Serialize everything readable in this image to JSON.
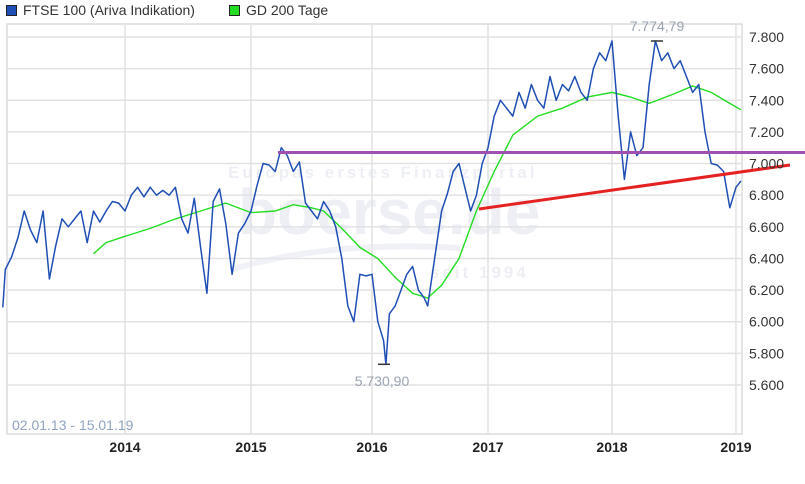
{
  "legend": {
    "items": [
      {
        "label": "FTSE 100 (Ariva Indikation)",
        "color": "#1f4fb5"
      },
      {
        "label": "GD 200 Tage",
        "color": "#22dd22"
      }
    ]
  },
  "watermark": {
    "line1": "Europas erstes Finanzportal",
    "brand": "boerse.de",
    "line2": "seit 1994"
  },
  "annotations": {
    "high_label": "7.774,79",
    "low_label": "5.730,90",
    "date_range": "02.01.13 - 15.01.19"
  },
  "chart_data": {
    "type": "line",
    "title": "",
    "xlabel": "",
    "ylabel": "",
    "date_range": "02.01.13 - 15.01.19",
    "x_tick_labels": [
      "2014",
      "2015",
      "2016",
      "2017",
      "2018",
      "2019"
    ],
    "y_tick_labels": [
      "7.800",
      "7.600",
      "7.400",
      "7.200",
      "7.000",
      "6.800",
      "6.600",
      "6.400",
      "6.200",
      "6.000",
      "5.800",
      "5.600"
    ],
    "ylim": [
      5480,
      7880
    ],
    "xlim": [
      2013.0,
      2019.05
    ],
    "grid": true,
    "legend_position": "top-left",
    "series": [
      {
        "name": "FTSE 100 (Ariva Indikation)",
        "color": "#1f4fb5",
        "x": [
          2013.0,
          2013.05,
          2013.1,
          2013.15,
          2013.2,
          2013.25,
          2013.3,
          2013.35,
          2013.4,
          2013.45,
          2013.5,
          2013.55,
          2013.6,
          2013.65,
          2013.7,
          2013.75,
          2013.8,
          2013.85,
          2013.9,
          2013.95,
          2014.0,
          2014.05,
          2014.1,
          2014.15,
          2014.2,
          2014.25,
          2014.3,
          2014.35,
          2014.4,
          2014.45,
          2014.5,
          2014.55,
          2014.6,
          2014.65,
          2014.7,
          2014.75,
          2014.8,
          2014.85,
          2014.9,
          2014.95,
          2015.0,
          2015.05,
          2015.1,
          2015.15,
          2015.2,
          2015.25,
          2015.3,
          2015.35,
          2015.4,
          2015.45,
          2015.5,
          2015.55,
          2015.6,
          2015.65,
          2015.7,
          2015.75,
          2015.8,
          2015.85,
          2015.9,
          2015.95,
          2016.0,
          2016.05,
          2016.1,
          2016.12,
          2016.15,
          2016.2,
          2016.25,
          2016.3,
          2016.35,
          2016.4,
          2016.45,
          2016.48,
          2016.5,
          2016.55,
          2016.6,
          2016.65,
          2016.7,
          2016.75,
          2016.8,
          2016.85,
          2016.9,
          2016.95,
          2017.0,
          2017.05,
          2017.1,
          2017.15,
          2017.2,
          2017.25,
          2017.3,
          2017.35,
          2017.4,
          2017.45,
          2017.5,
          2017.55,
          2017.6,
          2017.65,
          2017.7,
          2017.75,
          2017.8,
          2017.85,
          2017.9,
          2017.95,
          2018.0,
          2018.05,
          2018.1,
          2018.15,
          2018.2,
          2018.25,
          2018.3,
          2018.35,
          2018.4,
          2018.45,
          2018.5,
          2018.55,
          2018.6,
          2018.65,
          2018.7,
          2018.75,
          2018.8,
          2018.85,
          2018.9,
          2018.95,
          2019.0,
          2019.04
        ],
        "values": [
          6090,
          6330,
          6410,
          6530,
          6700,
          6580,
          6500,
          6700,
          6270,
          6480,
          6650,
          6600,
          6650,
          6700,
          6500,
          6700,
          6630,
          6700,
          6760,
          6750,
          6700,
          6800,
          6850,
          6790,
          6850,
          6800,
          6830,
          6800,
          6850,
          6650,
          6560,
          6780,
          6470,
          6180,
          6760,
          6840,
          6620,
          6300,
          6560,
          6620,
          6700,
          6860,
          7000,
          6990,
          6950,
          7100,
          7050,
          6950,
          7010,
          6750,
          6700,
          6650,
          6760,
          6700,
          6600,
          6400,
          6100,
          6000,
          6300,
          6290,
          6300,
          6000,
          5880,
          5730,
          6050,
          6100,
          6200,
          6300,
          6350,
          6200,
          6150,
          6100,
          6200,
          6450,
          6700,
          6810,
          6950,
          7000,
          6850,
          6700,
          6800,
          7000,
          7100,
          7300,
          7400,
          7350,
          7300,
          7450,
          7350,
          7500,
          7400,
          7350,
          7550,
          7400,
          7500,
          7460,
          7550,
          7450,
          7400,
          7600,
          7700,
          7650,
          7775,
          7300,
          6900,
          7200,
          7050,
          7100,
          7500,
          7775,
          7650,
          7700,
          7600,
          7650,
          7550,
          7450,
          7500,
          7200,
          7000,
          6990,
          6950,
          6720,
          6850,
          6890
        ],
        "annotations": {
          "high": 7774.79,
          "low": 5730.9
        }
      },
      {
        "name": "GD 200 Tage",
        "color": "#22dd22",
        "x": [
          2013.75,
          2013.85,
          2014.0,
          2014.2,
          2014.4,
          2014.6,
          2014.8,
          2015.0,
          2015.2,
          2015.35,
          2015.5,
          2015.6,
          2015.75,
          2015.9,
          2016.05,
          2016.2,
          2016.35,
          2016.48,
          2016.6,
          2016.75,
          2016.9,
          2017.05,
          2017.2,
          2017.4,
          2017.6,
          2017.8,
          2018.0,
          2018.15,
          2018.3,
          2018.5,
          2018.65,
          2018.8,
          2018.95,
          2019.04
        ],
        "values": [
          6430,
          6500,
          6540,
          6590,
          6650,
          6700,
          6750,
          6690,
          6700,
          6740,
          6720,
          6700,
          6590,
          6470,
          6400,
          6280,
          6180,
          6150,
          6230,
          6400,
          6700,
          6950,
          7180,
          7300,
          7350,
          7420,
          7450,
          7420,
          7380,
          7440,
          7490,
          7450,
          7380,
          7340
        ]
      }
    ],
    "reference_lines": [
      {
        "name": "resistance-line",
        "color": "#a050b0",
        "type": "horizontal",
        "value": 7070,
        "x_start": 2015.23,
        "x_end": 2019.05
      },
      {
        "name": "trend-line",
        "color": "#e52222",
        "type": "sloped",
        "points": [
          [
            2016.93,
            6710
          ],
          [
            2019.05,
            6990
          ]
        ]
      }
    ]
  }
}
